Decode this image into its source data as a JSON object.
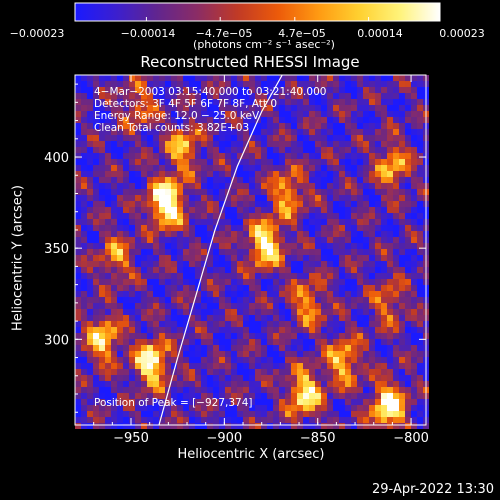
{
  "chart_data": {
    "type": "heatmap",
    "title": "Reconstructed RHESSI Image",
    "xlabel": "Heliocentric X (arcsec)",
    "ylabel": "Heliocentric Y (arcsec)",
    "xlim": [
      -980,
      -792
    ],
    "ylim": [
      253,
      445
    ],
    "x_ticks": [
      -950,
      -900,
      -850,
      -800
    ],
    "x_tick_labels": [
      "−950",
      "−900",
      "−850",
      "−800"
    ],
    "y_ticks": [
      300,
      350,
      400
    ],
    "y_tick_labels": [
      "300",
      "350",
      "400"
    ],
    "colorbar": {
      "range": [
        -0.00023,
        0.00023
      ],
      "ticks": [
        -0.00023,
        -0.00014,
        -4.7e-05,
        4.7e-05,
        0.00014,
        0.00023
      ],
      "tick_labels": [
        "−0.00023",
        "−0.00014",
        "−4.7e−05",
        "4.7e−05",
        "0.00014",
        "0.00023"
      ],
      "unit_label": "(photons cm⁻² s⁻¹ asec⁻²)",
      "colors": [
        "#1a1aff",
        "#3b1fd0",
        "#602590",
        "#8a2c66",
        "#c03a26",
        "#ec5a0a",
        "#ff9a12",
        "#ffd030",
        "#fff37a",
        "#ffffff"
      ]
    },
    "annotations": [
      "4−Mar−2003 03:15:40.000 to 03:21:40.000",
      "Detectors: 3F 4F 5F 6F 7F 8F, Att 0",
      "Energy Range: 12.0 − 25.0 keV",
      "Clean     Total counts: 3.82E+03",
      "Position of Peak = [−927,374]"
    ],
    "limb_curve": [
      [
        -935,
        253
      ],
      [
        -925,
        290
      ],
      [
        -915,
        325
      ],
      [
        -905,
        360
      ],
      [
        -893,
        395
      ],
      [
        -880,
        425
      ],
      [
        -869,
        445
      ]
    ],
    "bright_sources": [
      {
        "x": -931,
        "y": 375,
        "value": 1.0
      },
      {
        "x": -939,
        "y": 287,
        "value": 0.8
      },
      {
        "x": -965,
        "y": 300,
        "value": 0.65
      },
      {
        "x": -922,
        "y": 405,
        "value": 0.55
      },
      {
        "x": -878,
        "y": 352,
        "value": 0.8
      },
      {
        "x": -866,
        "y": 380,
        "value": 0.55
      },
      {
        "x": -857,
        "y": 270,
        "value": 0.75
      },
      {
        "x": -836,
        "y": 288,
        "value": 0.6
      },
      {
        "x": -812,
        "y": 263,
        "value": 0.85
      },
      {
        "x": -810,
        "y": 395,
        "value": 0.55
      },
      {
        "x": -855,
        "y": 320,
        "value": 0.5
      },
      {
        "x": -958,
        "y": 345,
        "value": 0.45
      },
      {
        "x": -946,
        "y": 428,
        "value": 0.4
      },
      {
        "x": -812,
        "y": 320,
        "value": 0.4
      }
    ]
  },
  "footer_timestamp": "29-Apr-2022 13:30"
}
